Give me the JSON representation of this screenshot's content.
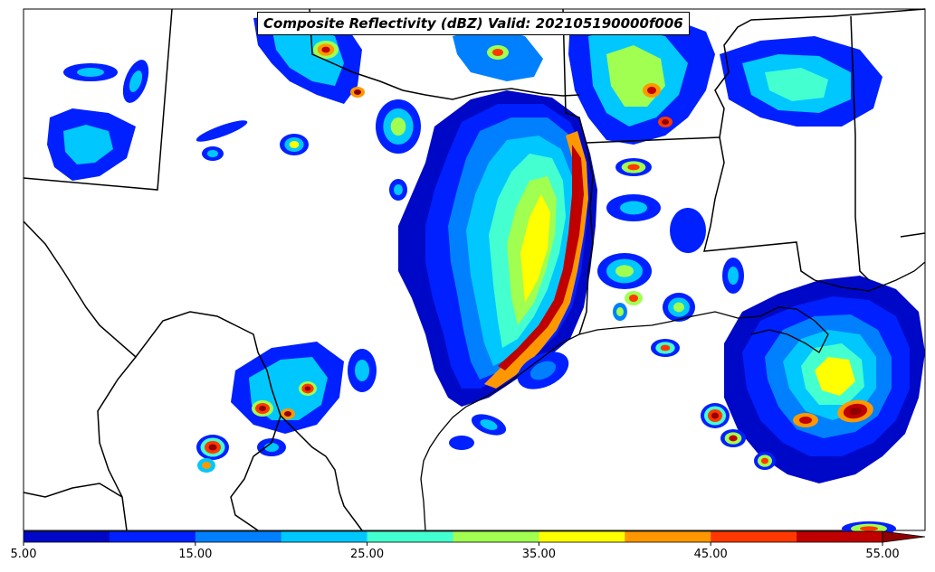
{
  "title": "Composite Reflectivity (dBZ) Valid: 202105190000f006",
  "colorbar": {
    "ticks": [
      "5.00",
      "15.00",
      "25.00",
      "35.00",
      "45.00",
      "55.00"
    ],
    "colors": [
      "#0008c8",
      "#0020ff",
      "#0080ff",
      "#00c8ff",
      "#44ffd0",
      "#a0ff50",
      "#ffff00",
      "#ff9800",
      "#ff3800",
      "#c00000",
      "#900000"
    ],
    "extend": "max"
  },
  "palette": {
    "c5": "#0008c8",
    "c10": "#0020ff",
    "c15": "#0080ff",
    "c20": "#00c8ff",
    "c25": "#44ffd0",
    "c30": "#a0ff50",
    "c35": "#ffff00",
    "c40": "#ff9800",
    "c45": "#ff3800",
    "c50": "#c00000",
    "c55": "#900000"
  }
}
